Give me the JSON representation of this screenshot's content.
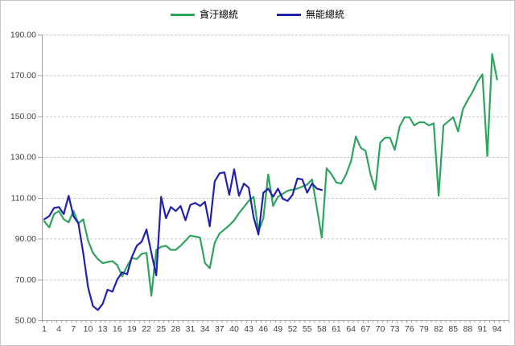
{
  "window": {
    "title": "line chart of two presidents index"
  },
  "chart_data": {
    "type": "line",
    "title": "",
    "xlabel": "",
    "ylabel": "",
    "ylim": [
      50,
      190
    ],
    "y_ticks": [
      50,
      70,
      90,
      110,
      130,
      150,
      170,
      190
    ],
    "y_tick_labels": [
      "50.00",
      "70.00",
      "90.00",
      "110.00",
      "130.00",
      "150.00",
      "170.00",
      "190.00"
    ],
    "x_tick_labels": [
      "1",
      "4",
      "7",
      "10",
      "13",
      "16",
      "19",
      "22",
      "25",
      "28",
      "31",
      "34",
      "37",
      "40",
      "43",
      "46",
      "49",
      "52",
      "55",
      "58",
      "61",
      "64",
      "67",
      "70",
      "73",
      "76",
      "79",
      "82",
      "85",
      "88",
      "91",
      "94"
    ],
    "x_count": 94,
    "grid": "horizontal-dashed",
    "legend_position": "top-center",
    "colors": {
      "series1": "#2ea45e",
      "series2": "#2121ad",
      "gridline": "#c8c8c8",
      "axis": "#a0a0a0",
      "tick_text": "#3f3f3f",
      "border": "#c6c6c6"
    },
    "series": [
      {
        "name": "貪汙總統",
        "color": "#2ea45e",
        "values": [
          98.5,
          95.5,
          102,
          103.5,
          99.5,
          98,
          103.5,
          97.5,
          99.5,
          89,
          83,
          80,
          78,
          78.5,
          79,
          77,
          71.5,
          76.5,
          80.5,
          80,
          82.5,
          83,
          62,
          84.5,
          86,
          86.5,
          84.5,
          84.5,
          86.5,
          89,
          91.5,
          91,
          90.5,
          78,
          75.5,
          88,
          92.5,
          94.5,
          96.5,
          99,
          102.5,
          105.5,
          108.5,
          110.5,
          93.5,
          100,
          121.5,
          106,
          110.5,
          112,
          113.5,
          114,
          114.5,
          115.5,
          116.5,
          119,
          105,
          90.5,
          124.5,
          121.5,
          117.5,
          117,
          121.5,
          128,
          140,
          134.5,
          133,
          121.5,
          114,
          137,
          139.5,
          139.5,
          133.5,
          145,
          149.5,
          149.5,
          145.5,
          147,
          147,
          145.5,
          146.5,
          111,
          145.5,
          147.5,
          149.5,
          142.5,
          153.5,
          158,
          162,
          167,
          170.5,
          130.5,
          180.5,
          168
        ]
      },
      {
        "name": "無能總統",
        "color": "#2121ad",
        "values": [
          99.5,
          101,
          105,
          105.5,
          102,
          111,
          101,
          97.5,
          83,
          66,
          57,
          55,
          58,
          65,
          64,
          70,
          73.5,
          72.5,
          81,
          86.5,
          88.5,
          94.5,
          83,
          72,
          110.5,
          100,
          105.5,
          103.5,
          106,
          99,
          106.5,
          107.5,
          106,
          108,
          96,
          118,
          122,
          122.5,
          111.5,
          124,
          111,
          117,
          115,
          100.5,
          92,
          112.5,
          114.5,
          110.5,
          114.5,
          109.5,
          108.5,
          111.5,
          119.5,
          119,
          112.5,
          117,
          114.5,
          113.8
        ]
      }
    ]
  },
  "legend": {
    "items": [
      {
        "label": "貪汙總統",
        "color": "#2ea45e"
      },
      {
        "label": "無能總統",
        "color": "#2121ad"
      }
    ]
  }
}
